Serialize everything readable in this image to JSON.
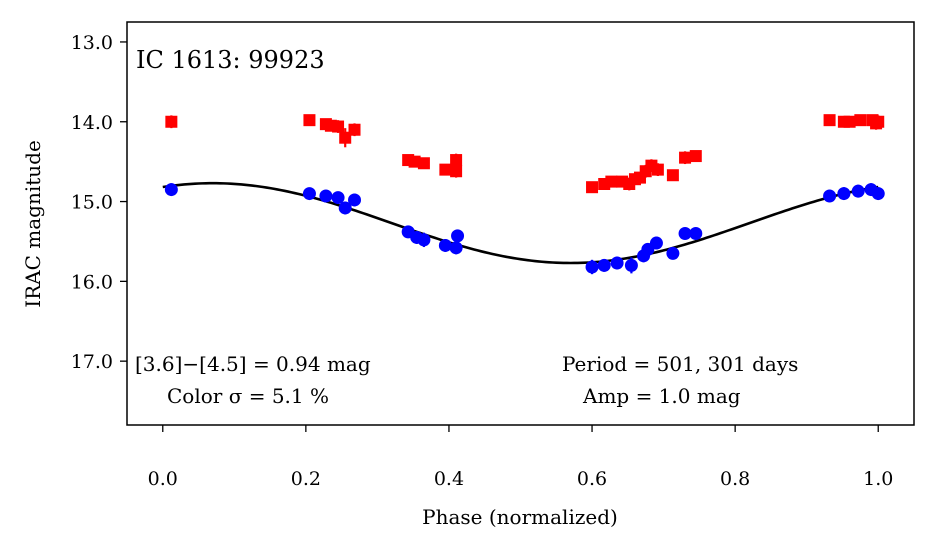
{
  "chart_data": {
    "type": "scatter",
    "title": "IC 1613:  99923",
    "xlabel": "Phase (normalized)",
    "ylabel": "IRAC magnitude",
    "xlim": [
      -0.05,
      1.05
    ],
    "ylim": [
      17.8,
      12.75
    ],
    "y_inverted": true,
    "xticks": [
      "0.0",
      "0.2",
      "0.4",
      "0.6",
      "0.8",
      "1.0"
    ],
    "yticks": [
      "13.0",
      "14.0",
      "15.0",
      "16.0",
      "17.0"
    ],
    "grid": false,
    "colors": {
      "band_3_6": "#0000ff",
      "band_4_5": "#ff0000",
      "fit": "#000000"
    },
    "series": [
      {
        "marker": "square",
        "color": "#ff0000",
        "points": [
          [
            0.012,
            14.0,
            0.08
          ],
          [
            0.205,
            13.98,
            0.06
          ],
          [
            0.228,
            14.03,
            0.07
          ],
          [
            0.235,
            14.05,
            0.07
          ],
          [
            0.245,
            14.06,
            0.08
          ],
          [
            0.255,
            14.2,
            0.12
          ],
          [
            0.268,
            14.1,
            0.08
          ],
          [
            0.343,
            14.48,
            0.06
          ],
          [
            0.352,
            14.5,
            0.06
          ],
          [
            0.365,
            14.52,
            0.06
          ],
          [
            0.395,
            14.6,
            0.07
          ],
          [
            0.41,
            14.48,
            0.08
          ],
          [
            0.41,
            14.62,
            0.08
          ],
          [
            0.6,
            14.82,
            0.07
          ],
          [
            0.617,
            14.78,
            0.07
          ],
          [
            0.627,
            14.75,
            0.07
          ],
          [
            0.642,
            14.75,
            0.07
          ],
          [
            0.652,
            14.78,
            0.08
          ],
          [
            0.66,
            14.72,
            0.07
          ],
          [
            0.667,
            14.7,
            0.07
          ],
          [
            0.675,
            14.62,
            0.08
          ],
          [
            0.683,
            14.55,
            0.08
          ],
          [
            0.692,
            14.6,
            0.08
          ],
          [
            0.713,
            14.67,
            0.07
          ],
          [
            0.73,
            14.45,
            0.08
          ],
          [
            0.745,
            14.43,
            0.07
          ],
          [
            0.932,
            13.98,
            0.06
          ],
          [
            0.952,
            14.0,
            0.07
          ],
          [
            0.96,
            14.0,
            0.07
          ],
          [
            0.975,
            13.98,
            0.06
          ],
          [
            0.992,
            13.98,
            0.07
          ],
          [
            0.997,
            14.02,
            0.08
          ],
          [
            1.0,
            14.0,
            0.08
          ]
        ]
      },
      {
        "marker": "circle",
        "color": "#0000ff",
        "points": [
          [
            0.012,
            14.85,
            0.08
          ],
          [
            0.205,
            14.9,
            0.07
          ],
          [
            0.228,
            14.93,
            0.07
          ],
          [
            0.245,
            14.95,
            0.07
          ],
          [
            0.255,
            15.08,
            0.08
          ],
          [
            0.268,
            14.98,
            0.08
          ],
          [
            0.343,
            15.38,
            0.07
          ],
          [
            0.355,
            15.45,
            0.08
          ],
          [
            0.365,
            15.48,
            0.09
          ],
          [
            0.395,
            15.55,
            0.08
          ],
          [
            0.41,
            15.58,
            0.08
          ],
          [
            0.412,
            15.43,
            0.07
          ],
          [
            0.6,
            15.82,
            0.09
          ],
          [
            0.617,
            15.8,
            0.08
          ],
          [
            0.635,
            15.77,
            0.08
          ],
          [
            0.655,
            15.8,
            0.1
          ],
          [
            0.672,
            15.68,
            0.08
          ],
          [
            0.678,
            15.6,
            0.08
          ],
          [
            0.69,
            15.52,
            0.08
          ],
          [
            0.713,
            15.65,
            0.07
          ],
          [
            0.73,
            15.4,
            0.07
          ],
          [
            0.745,
            15.4,
            0.07
          ],
          [
            0.932,
            14.93,
            0.06
          ],
          [
            0.952,
            14.9,
            0.08
          ],
          [
            0.972,
            14.87,
            0.08
          ],
          [
            0.99,
            14.85,
            0.08
          ],
          [
            1.0,
            14.9,
            0.08
          ]
        ]
      }
    ],
    "fit_curve": {
      "model": "sinusoid",
      "mean_mag": 15.27,
      "semi_amplitude": 0.5,
      "phase_of_max_brightness": 0.07
    },
    "annotations": {
      "title": "IC 1613:  99923",
      "color_diff": "[3.6]−[4.5] = 0.94 mag",
      "color_sigma": "Color σ = 5.1 %",
      "period": "Period = 501, 301 days",
      "amp": "Amp = 1.0 mag"
    }
  }
}
